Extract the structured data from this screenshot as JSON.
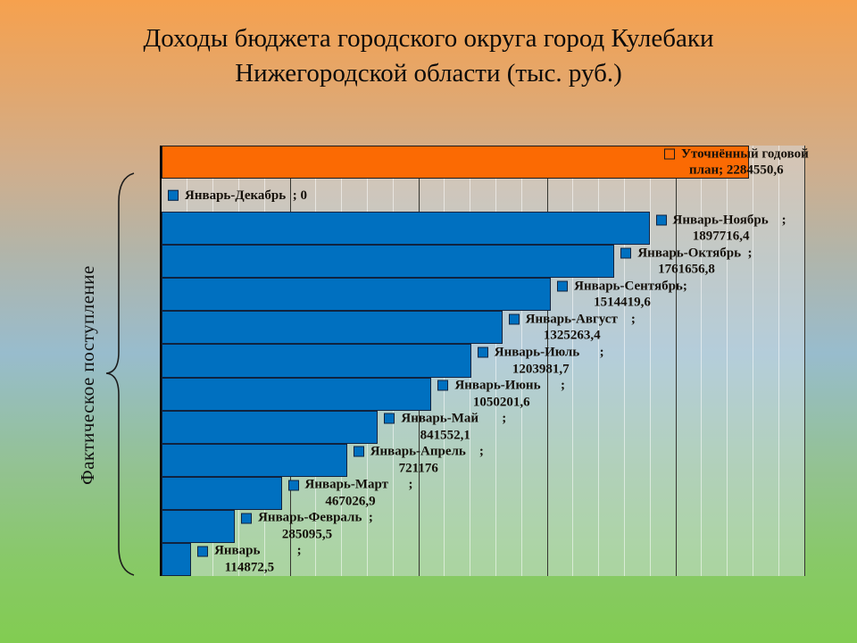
{
  "slide": {
    "title_lines": [
      "Доходы бюджета городского округа город Кулебаки",
      "Нижегородской области (тыс. руб.)"
    ],
    "side_label": "Фактическое поступление"
  },
  "chart_data": {
    "type": "bar",
    "orientation": "horizontal",
    "title": "Доходы бюджета городского округа город Кулебаки Нижегородской области (тыс. руб.)",
    "unit": "тыс. руб.",
    "legend_position": "none",
    "grid": "vertical",
    "axis": {
      "min": 0,
      "max": 2500000,
      "major_step": 500000,
      "minor_step": 100000
    },
    "colors": {
      "blue": "#0070C0",
      "blue_border": "#10233f",
      "orange": "#FB6A03",
      "orange_border": "#1a1a1a"
    },
    "rows": [
      {
        "name": "Уточнённый годовой план",
        "value": 2284550.6,
        "display": "2284550,6",
        "color": "orange",
        "label_pos": "overlap",
        "label_lines": [
          "Уточнённый годовой",
          "план; 2284550,6"
        ]
      },
      {
        "name": "Январь-Декабрь",
        "value": 0,
        "display": "0",
        "color": "blue",
        "label_pos": "after",
        "label_lines": [
          "Январь-Декабрь  ; 0"
        ]
      },
      {
        "name": "Январь-Ноябрь",
        "value": 1897716.4,
        "display": "1897716,4",
        "color": "blue",
        "label_pos": "after",
        "label_lines": [
          "Январь-Ноябрь    ;",
          "1897716,4"
        ]
      },
      {
        "name": "Январь-Октябрь",
        "value": 1761656.8,
        "display": "1761656,8",
        "color": "blue",
        "label_pos": "after",
        "label_lines": [
          "Январь-Октябрь  ;",
          "1761656,8"
        ]
      },
      {
        "name": "Январь-Сентябрь",
        "value": 1514419.6,
        "display": "1514419,6",
        "color": "blue",
        "label_pos": "after",
        "label_lines": [
          "Январь-Сентябрь;",
          "1514419,6"
        ]
      },
      {
        "name": "Январь-Август",
        "value": 1325263.4,
        "display": "1325263,4",
        "color": "blue",
        "label_pos": "after",
        "label_lines": [
          "Январь-Август    ;",
          "1325263,4"
        ]
      },
      {
        "name": "Январь-Июль",
        "value": 1203981.7,
        "display": "1203981,7",
        "color": "blue",
        "label_pos": "after",
        "label_lines": [
          "Январь-Июль      ;",
          "1203981,7"
        ]
      },
      {
        "name": "Январь-Июнь",
        "value": 1050201.6,
        "display": "1050201,6",
        "color": "blue",
        "label_pos": "after",
        "label_lines": [
          "Январь-Июнь      ;",
          "1050201,6"
        ]
      },
      {
        "name": "Январь-Май",
        "value": 841552.1,
        "display": "841552,1",
        "color": "blue",
        "label_pos": "after",
        "label_lines": [
          "Январь-Май       ;",
          "841552,1"
        ]
      },
      {
        "name": "Январь-Апрель",
        "value": 721176,
        "display": "721176",
        "color": "blue",
        "label_pos": "after",
        "label_lines": [
          "Январь-Апрель    ;",
          "721176"
        ]
      },
      {
        "name": "Январь-Март",
        "value": 467026.9,
        "display": "467026,9",
        "color": "blue",
        "label_pos": "after",
        "label_lines": [
          "Январь-Март      ;",
          "467026,9"
        ]
      },
      {
        "name": "Январь-Февраль",
        "value": 285095.5,
        "display": "285095,5",
        "color": "blue",
        "label_pos": "after",
        "label_lines": [
          "Январь-Февраль  ;",
          "285095,5"
        ]
      },
      {
        "name": "Январь",
        "value": 114872.5,
        "display": "114872,5",
        "color": "blue",
        "label_pos": "after",
        "label_lines": [
          "Январь           ;",
          "114872,5"
        ]
      }
    ]
  }
}
